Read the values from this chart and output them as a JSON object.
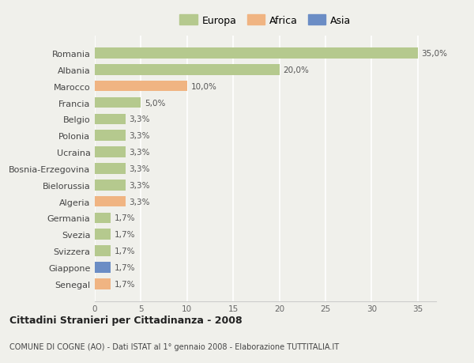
{
  "countries": [
    "Romania",
    "Albania",
    "Marocco",
    "Francia",
    "Belgio",
    "Polonia",
    "Ucraina",
    "Bosnia-Erzegovina",
    "Bielorussia",
    "Algeria",
    "Germania",
    "Svezia",
    "Svizzera",
    "Giappone",
    "Senegal"
  ],
  "values": [
    35.0,
    20.0,
    10.0,
    5.0,
    3.3,
    3.3,
    3.3,
    3.3,
    3.3,
    3.3,
    1.7,
    1.7,
    1.7,
    1.7,
    1.7
  ],
  "labels": [
    "35,0%",
    "20,0%",
    "10,0%",
    "5,0%",
    "3,3%",
    "3,3%",
    "3,3%",
    "3,3%",
    "3,3%",
    "3,3%",
    "1,7%",
    "1,7%",
    "1,7%",
    "1,7%",
    "1,7%"
  ],
  "continents": [
    "Europa",
    "Europa",
    "Africa",
    "Europa",
    "Europa",
    "Europa",
    "Europa",
    "Europa",
    "Europa",
    "Africa",
    "Europa",
    "Europa",
    "Europa",
    "Asia",
    "Africa"
  ],
  "colors": {
    "Europa": "#b5c98e",
    "Africa": "#f0b482",
    "Asia": "#6b8dc5"
  },
  "xlim": [
    0,
    37
  ],
  "xticks": [
    0,
    5,
    10,
    15,
    20,
    25,
    30,
    35
  ],
  "title": "Cittadini Stranieri per Cittadinanza - 2008",
  "subtitle": "COMUNE DI COGNE (AO) - Dati ISTAT al 1° gennaio 2008 - Elaborazione TUTTITALIA.IT",
  "background_color": "#f0f0eb",
  "grid_color": "#ffffff",
  "bar_height": 0.65
}
